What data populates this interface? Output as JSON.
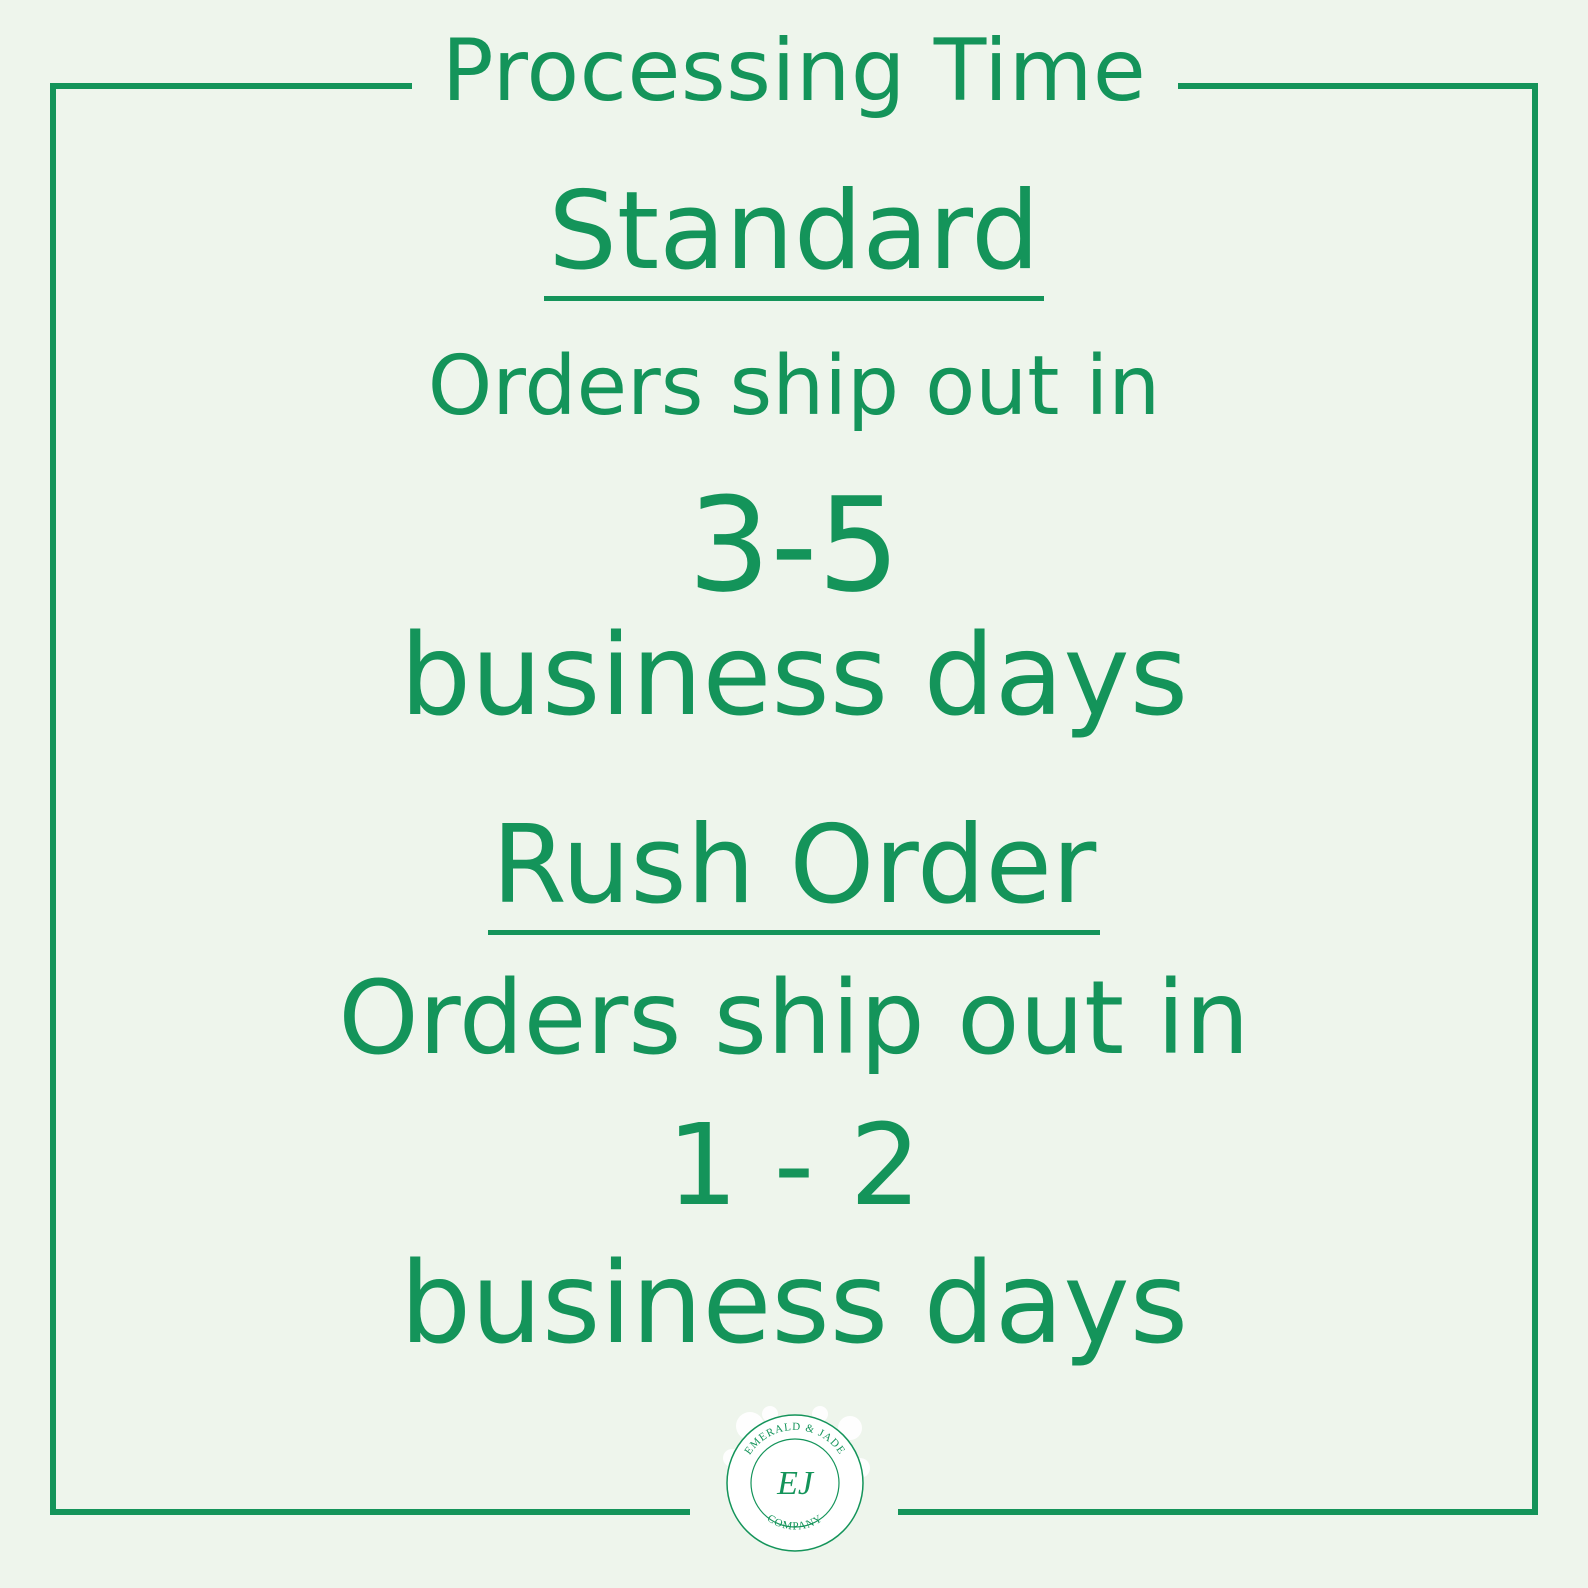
{
  "title": "Processing Time",
  "standard": {
    "heading": "Standard",
    "intro": "Orders ship out in",
    "range": "3-5",
    "unit": "business days"
  },
  "rush": {
    "heading": "Rush Order",
    "intro": "Orders ship out in",
    "range": "1 - 2",
    "unit": "business days"
  },
  "logo": {
    "top_text": "EMERALD & JADE",
    "monogram": "EJ",
    "bottom_text": "COMPANY"
  },
  "colors": {
    "accent": "#14945a",
    "background": "#eef5ec"
  }
}
